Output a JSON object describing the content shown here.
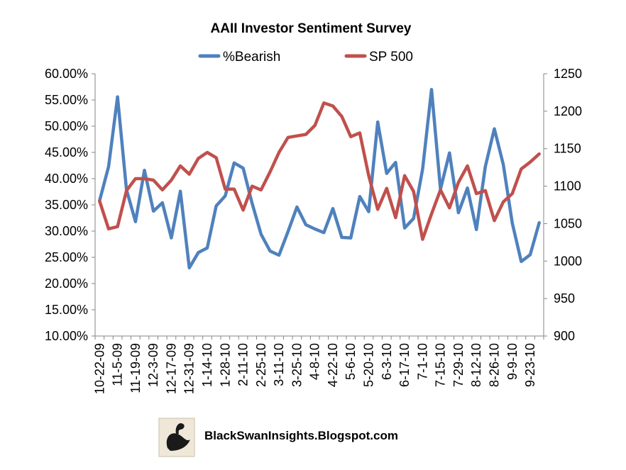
{
  "chart_data": {
    "type": "line",
    "title": "AAII Investor Sentiment Survey",
    "legend_position": "top",
    "grid": false,
    "x": [
      "10-22-09",
      "10-29-09",
      "11-5-09",
      "11-12-09",
      "11-19-09",
      "11-26-09",
      "12-3-09",
      "12-10-09",
      "12-17-09",
      "12-24-09",
      "12-31-09",
      "1-7-10",
      "1-14-10",
      "1-21-10",
      "1-28-10",
      "2-4-10",
      "2-11-10",
      "2-18-10",
      "2-25-10",
      "3-4-10",
      "3-11-10",
      "3-18-10",
      "3-25-10",
      "4-1-10",
      "4-8-10",
      "4-15-10",
      "4-22-10",
      "4-29-10",
      "5-6-10",
      "5-13-10",
      "5-20-10",
      "5-27-10",
      "6-3-10",
      "6-10-10",
      "6-17-10",
      "6-24-10",
      "7-1-10",
      "7-8-10",
      "7-15-10",
      "7-22-10",
      "7-29-10",
      "8-5-10",
      "8-12-10",
      "8-19-10",
      "8-26-10",
      "9-2-10",
      "9-9-10",
      "9-16-10",
      "9-23-10",
      "9-30-10"
    ],
    "x_tick_labels": [
      "10-22-09",
      "11-5-09",
      "11-19-09",
      "12-3-09",
      "12-17-09",
      "12-31-09",
      "1-14-10",
      "1-28-10",
      "2-11-10",
      "2-25-10",
      "3-11-10",
      "3-25-10",
      "4-8-10",
      "4-22-10",
      "5-6-10",
      "5-20-10",
      "6-3-10",
      "6-17-10",
      "7-1-10",
      "7-15-10",
      "7-29-10",
      "8-12-10",
      "8-26-10",
      "9-9-10",
      "9-23-10"
    ],
    "left_axis": {
      "ylim": [
        10,
        60
      ],
      "ticks": [
        "60.00%",
        "55.00%",
        "50.00%",
        "45.00%",
        "40.00%",
        "35.00%",
        "30.00%",
        "25.00%",
        "20.00%",
        "15.00%",
        "10.00%"
      ]
    },
    "right_axis": {
      "ylim": [
        900,
        1250
      ],
      "ticks": [
        "1250",
        "1200",
        "1150",
        "1100",
        "1050",
        "1000",
        "950",
        "900"
      ]
    },
    "series": [
      {
        "name": "%Bearish",
        "axis": "left",
        "color": "#4f81bd",
        "values": [
          35.8,
          42.3,
          55.6,
          37.9,
          31.8,
          41.6,
          33.8,
          35.4,
          28.7,
          37.6,
          23.0,
          25.9,
          26.8,
          34.8,
          36.7,
          43.0,
          42.0,
          35.3,
          29.4,
          26.2,
          25.4,
          29.9,
          34.6,
          31.2,
          30.4,
          29.7,
          34.3,
          28.8,
          28.7,
          36.6,
          33.7,
          50.8,
          41.0,
          43.1,
          30.6,
          32.4,
          41.8,
          57.0,
          38.0,
          44.9,
          33.5,
          38.2,
          30.3,
          42.3,
          49.5,
          42.7,
          31.5,
          24.2,
          25.5,
          31.6
        ]
      },
      {
        "name": "SP 500",
        "axis": "right",
        "color": "#c0504d",
        "values": [
          1080,
          1043,
          1046,
          1094,
          1110,
          1110,
          1108,
          1095,
          1108,
          1127,
          1116,
          1137,
          1145,
          1138,
          1096,
          1096,
          1068,
          1100,
          1095,
          1119,
          1145,
          1165,
          1167,
          1169,
          1181,
          1211,
          1207,
          1193,
          1166,
          1171,
          1114,
          1069,
          1097,
          1058,
          1114,
          1093,
          1029,
          1063,
          1095,
          1071,
          1105,
          1127,
          1090,
          1094,
          1054,
          1079,
          1090,
          1123,
          1132,
          1143
        ]
      }
    ],
    "annotations": [
      "BlackSwanInsights.Blogspot.com"
    ]
  }
}
